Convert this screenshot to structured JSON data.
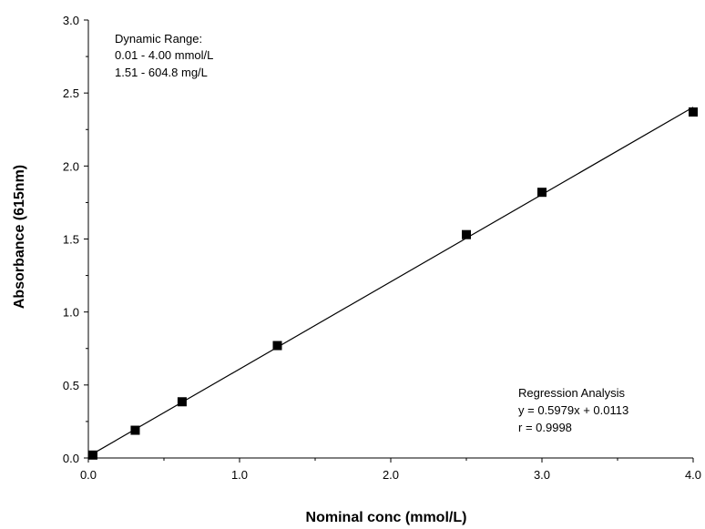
{
  "chart_data": {
    "type": "scatter",
    "title": "",
    "xlabel": "Nominal conc (mmol/L)",
    "ylabel": "Absorbance (615nm)",
    "xlim": [
      0,
      4.0
    ],
    "ylim": [
      0,
      3.0
    ],
    "x_ticks": [
      "0.0",
      "1.0",
      "2.0",
      "3.0",
      "4.0"
    ],
    "y_ticks": [
      "0.0",
      "0.5",
      "1.0",
      "1.5",
      "2.0",
      "2.5",
      "3.0"
    ],
    "grid": false,
    "series": [
      {
        "marker": "square",
        "color": "#000000",
        "points": [
          {
            "x": 0.03,
            "y": 0.02
          },
          {
            "x": 0.31,
            "y": 0.19
          },
          {
            "x": 0.62,
            "y": 0.385
          },
          {
            "x": 1.25,
            "y": 0.77
          },
          {
            "x": 2.5,
            "y": 1.53
          },
          {
            "x": 3.0,
            "y": 1.82
          },
          {
            "x": 4.0,
            "y": 2.37
          }
        ]
      }
    ],
    "regression_line": {
      "slope": 0.5979,
      "intercept": 0.0113,
      "x_range": [
        0.0,
        4.0
      ],
      "color": "#000000"
    },
    "annotations": {
      "dynamic_range": [
        "Dynamic Range:",
        "0.01 - 4.00 mmol/L",
        "1.51 - 604.8 mg/L"
      ],
      "regression": [
        "Regression Analysis",
        "y = 0.5979x + 0.0113",
        "r = 0.9998"
      ]
    }
  }
}
